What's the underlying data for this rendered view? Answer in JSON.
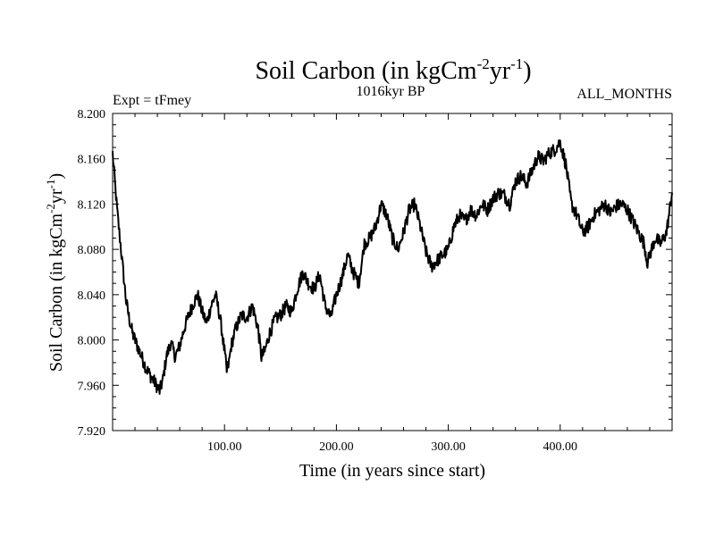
{
  "chart_data": {
    "type": "line",
    "title": "Soil Carbon (in kgCm",
    "title_sup1": "-2",
    "title_mid": "yr",
    "title_sup2": "-1",
    "title_end": ")",
    "subtitle_left": "Expt = tFmey",
    "subtitle_center": "1016kyr BP",
    "subtitle_right": "ALL_MONTHS",
    "xlabel": "Time (in years since start)",
    "ylabel": "Soil Carbon (in kgCm",
    "ylabel_sup1": "-2",
    "ylabel_mid": "yr",
    "ylabel_sup2": "-1",
    "ylabel_end": ")",
    "xlim": [
      0,
      500
    ],
    "ylim": [
      7.92,
      8.2
    ],
    "x_ticks": [
      100,
      200,
      300,
      400
    ],
    "x_tick_labels": [
      "100.00",
      "200.00",
      "300.00",
      "400.00"
    ],
    "y_ticks": [
      7.92,
      7.96,
      8.0,
      8.04,
      8.08,
      8.12,
      8.16,
      8.2
    ],
    "y_tick_labels": [
      "7.920",
      "7.960",
      "8.000",
      "8.040",
      "8.080",
      "8.120",
      "8.160",
      "8.200"
    ],
    "series": [
      {
        "name": "Soil Carbon",
        "x": [
          0,
          2,
          4,
          6,
          8,
          10,
          12,
          15,
          18,
          22,
          26,
          30,
          34,
          38,
          42,
          45,
          48,
          52,
          56,
          60,
          64,
          68,
          72,
          76,
          80,
          84,
          88,
          92,
          96,
          100,
          102,
          104,
          106,
          110,
          115,
          120,
          125,
          130,
          133,
          136,
          140,
          145,
          150,
          155,
          160,
          165,
          170,
          175,
          180,
          185,
          190,
          195,
          200,
          205,
          210,
          215,
          220,
          225,
          230,
          235,
          240,
          245,
          250,
          255,
          260,
          265,
          270,
          275,
          280,
          285,
          290,
          295,
          300,
          305,
          310,
          315,
          320,
          325,
          330,
          335,
          340,
          345,
          350,
          355,
          360,
          365,
          370,
          375,
          380,
          385,
          390,
          395,
          400,
          405,
          410,
          415,
          420,
          425,
          430,
          435,
          440,
          445,
          450,
          455,
          460,
          465,
          470,
          475,
          478,
          480,
          485,
          490,
          495,
          500
        ],
        "values": [
          8.165,
          8.14,
          8.115,
          8.095,
          8.075,
          8.055,
          8.035,
          8.018,
          8.005,
          7.995,
          7.985,
          7.975,
          7.968,
          7.962,
          7.955,
          7.965,
          7.985,
          7.998,
          7.985,
          7.995,
          8.01,
          8.022,
          8.032,
          8.04,
          8.025,
          8.015,
          8.03,
          8.04,
          8.02,
          7.99,
          7.972,
          7.98,
          7.995,
          8.01,
          8.022,
          8.02,
          8.03,
          8.01,
          7.985,
          7.99,
          8.005,
          8.018,
          8.022,
          8.03,
          8.025,
          8.045,
          8.06,
          8.05,
          8.045,
          8.058,
          8.03,
          8.02,
          8.04,
          8.055,
          8.075,
          8.06,
          8.05,
          8.085,
          8.09,
          8.1,
          8.12,
          8.11,
          8.09,
          8.08,
          8.095,
          8.115,
          8.12,
          8.1,
          8.078,
          8.065,
          8.07,
          8.075,
          8.08,
          8.1,
          8.11,
          8.105,
          8.115,
          8.11,
          8.12,
          8.115,
          8.125,
          8.13,
          8.128,
          8.12,
          8.14,
          8.145,
          8.138,
          8.15,
          8.162,
          8.158,
          8.165,
          8.168,
          8.175,
          8.155,
          8.12,
          8.11,
          8.095,
          8.1,
          8.11,
          8.115,
          8.12,
          8.112,
          8.118,
          8.12,
          8.115,
          8.105,
          8.095,
          8.085,
          8.068,
          8.075,
          8.09,
          8.085,
          8.095,
          8.13
        ]
      }
    ]
  }
}
